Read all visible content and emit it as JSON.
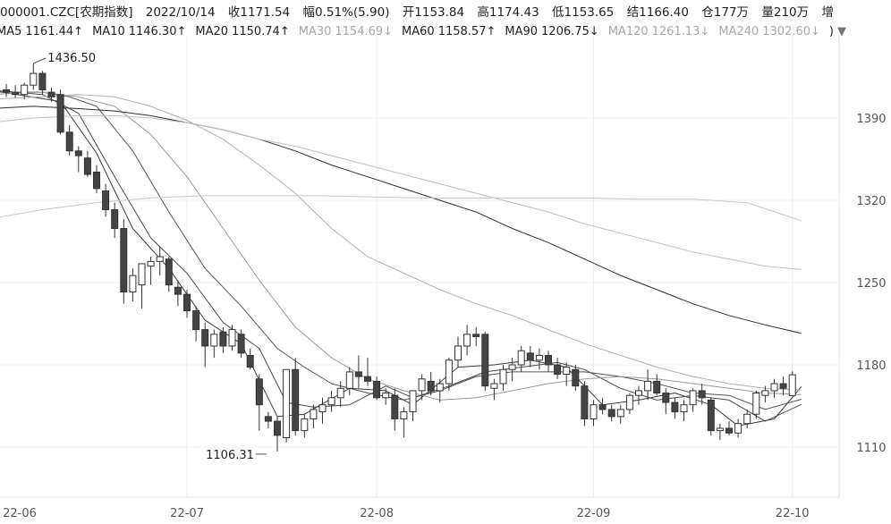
{
  "header": {
    "symbol": "000001.CZC[农期指数]",
    "date": "2022/10/14",
    "close_label": "收",
    "close": "1171.54",
    "change_label": "幅",
    "change": "0.51%(5.90)",
    "open_label": "开",
    "open": "1153.84",
    "high_label": "高",
    "high": "1174.43",
    "low_label": "低",
    "low": "1153.65",
    "settle_label": "结",
    "settle": "1166.40",
    "oi_label": "仓",
    "oi": "177万",
    "vol_label": "量",
    "vol": "210万",
    "more_label": "增"
  },
  "ma_legend": [
    {
      "label": "MA5",
      "value": "1161.44",
      "arrow": "↑",
      "muted": false
    },
    {
      "label": "MA10",
      "value": "1146.30",
      "arrow": "↑",
      "muted": false
    },
    {
      "label": "MA20",
      "value": "1150.74",
      "arrow": "↑",
      "muted": false
    },
    {
      "label": "MA30",
      "value": "1154.69",
      "arrow": "↓",
      "muted": true
    },
    {
      "label": "MA60",
      "value": "1158.57",
      "arrow": "↑",
      "muted": false
    },
    {
      "label": "MA90",
      "value": "1206.75",
      "arrow": "↓",
      "muted": false
    },
    {
      "label": "MA120",
      "value": "1261.13",
      "arrow": "↓",
      "muted": true
    },
    {
      "label": "MA240",
      "value": "1302.60",
      "arrow": "↓",
      "muted": true
    }
  ],
  "legend_tail": ")",
  "legend_toggle_icon": "triangle-down-icon",
  "chart_data": {
    "type": "candlestick",
    "ylim": [
      1075,
      1460
    ],
    "yticks": [
      1110,
      1180,
      1250,
      1320,
      1390
    ],
    "xticks": [
      {
        "label": "22-06",
        "index": -2
      },
      {
        "label": "22-07",
        "index": 20
      },
      {
        "label": "22-08",
        "index": 41
      },
      {
        "label": "22-09",
        "index": 65
      },
      {
        "label": "22-10",
        "index": 87
      }
    ],
    "annotations": [
      {
        "text": "1436.50",
        "index": 3,
        "value": 1436.5,
        "side": "right"
      },
      {
        "text": "1106.31",
        "index": 29,
        "value": 1106.31,
        "side": "left"
      }
    ],
    "candles": [
      [
        1414,
        1419,
        1408,
        1412
      ],
      [
        1412,
        1418,
        1407,
        1410
      ],
      [
        1410,
        1420,
        1406,
        1418
      ],
      [
        1418,
        1436.5,
        1414,
        1428
      ],
      [
        1428,
        1430,
        1410,
        1414
      ],
      [
        1412,
        1416,
        1404,
        1408
      ],
      [
        1410,
        1414,
        1376,
        1378
      ],
      [
        1378,
        1384,
        1358,
        1362
      ],
      [
        1362,
        1366,
        1344,
        1358
      ],
      [
        1356,
        1362,
        1340,
        1342
      ],
      [
        1344,
        1350,
        1326,
        1330
      ],
      [
        1328,
        1334,
        1306,
        1312
      ],
      [
        1312,
        1318,
        1288,
        1296
      ],
      [
        1296,
        1304,
        1232,
        1242
      ],
      [
        1242,
        1262,
        1234,
        1256
      ],
      [
        1248,
        1266,
        1228,
        1266
      ],
      [
        1264,
        1272,
        1248,
        1268
      ],
      [
        1268,
        1280,
        1256,
        1272
      ],
      [
        1270,
        1272,
        1242,
        1248
      ],
      [
        1246,
        1252,
        1230,
        1240
      ],
      [
        1240,
        1244,
        1220,
        1226
      ],
      [
        1226,
        1230,
        1200,
        1210
      ],
      [
        1210,
        1216,
        1178,
        1196
      ],
      [
        1196,
        1210,
        1186,
        1206
      ],
      [
        1208,
        1212,
        1190,
        1196
      ],
      [
        1196,
        1214,
        1192,
        1210
      ],
      [
        1206,
        1210,
        1186,
        1190
      ],
      [
        1188,
        1194,
        1176,
        1178
      ],
      [
        1168,
        1172,
        1124,
        1146
      ],
      [
        1136,
        1140,
        1126,
        1132
      ],
      [
        1132,
        1136,
        1106.31,
        1120
      ],
      [
        1118,
        1176,
        1114,
        1176
      ],
      [
        1176,
        1186,
        1120,
        1124
      ],
      [
        1124,
        1138,
        1118,
        1134
      ],
      [
        1134,
        1146,
        1126,
        1142
      ],
      [
        1140,
        1152,
        1130,
        1146
      ],
      [
        1146,
        1158,
        1140,
        1152
      ],
      [
        1152,
        1166,
        1144,
        1160
      ],
      [
        1160,
        1178,
        1154,
        1174
      ],
      [
        1174,
        1188,
        1160,
        1170
      ],
      [
        1170,
        1186,
        1162,
        1166
      ],
      [
        1166,
        1170,
        1150,
        1152
      ],
      [
        1152,
        1160,
        1146,
        1156
      ],
      [
        1154,
        1160,
        1124,
        1134
      ],
      [
        1134,
        1144,
        1118,
        1140
      ],
      [
        1140,
        1158,
        1132,
        1158
      ],
      [
        1158,
        1172,
        1150,
        1168
      ],
      [
        1166,
        1174,
        1154,
        1158
      ],
      [
        1158,
        1168,
        1148,
        1164
      ],
      [
        1164,
        1186,
        1158,
        1184
      ],
      [
        1184,
        1204,
        1178,
        1196
      ],
      [
        1196,
        1214,
        1188,
        1206
      ],
      [
        1206,
        1212,
        1196,
        1204
      ],
      [
        1206,
        1208,
        1158,
        1162
      ],
      [
        1160,
        1168,
        1150,
        1164
      ],
      [
        1164,
        1180,
        1158,
        1176
      ],
      [
        1176,
        1186,
        1166,
        1180
      ],
      [
        1180,
        1196,
        1174,
        1192
      ],
      [
        1190,
        1196,
        1178,
        1184
      ],
      [
        1184,
        1194,
        1176,
        1188
      ],
      [
        1188,
        1192,
        1174,
        1180
      ],
      [
        1180,
        1186,
        1168,
        1172
      ],
      [
        1172,
        1182,
        1162,
        1178
      ],
      [
        1176,
        1180,
        1158,
        1162
      ],
      [
        1162,
        1166,
        1128,
        1134
      ],
      [
        1134,
        1150,
        1128,
        1146
      ],
      [
        1146,
        1152,
        1138,
        1142
      ],
      [
        1142,
        1146,
        1132,
        1136
      ],
      [
        1136,
        1146,
        1130,
        1142
      ],
      [
        1142,
        1156,
        1138,
        1154
      ],
      [
        1154,
        1162,
        1146,
        1158
      ],
      [
        1158,
        1176,
        1150,
        1166
      ],
      [
        1166,
        1172,
        1154,
        1156
      ],
      [
        1156,
        1160,
        1138,
        1148
      ],
      [
        1148,
        1152,
        1134,
        1140
      ],
      [
        1140,
        1150,
        1132,
        1146
      ],
      [
        1146,
        1160,
        1140,
        1158
      ],
      [
        1158,
        1164,
        1146,
        1152
      ],
      [
        1150,
        1152,
        1120,
        1124
      ],
      [
        1124,
        1130,
        1116,
        1126
      ],
      [
        1126,
        1132,
        1120,
        1122
      ],
      [
        1122,
        1134,
        1118,
        1130
      ],
      [
        1130,
        1142,
        1126,
        1138
      ],
      [
        1138,
        1158,
        1134,
        1156
      ],
      [
        1154,
        1162,
        1148,
        1158
      ],
      [
        1158,
        1168,
        1152,
        1164
      ],
      [
        1164,
        1170,
        1154,
        1160
      ],
      [
        1153.84,
        1174.43,
        1153.65,
        1171.54
      ]
    ],
    "ma_lines": [
      {
        "name": "MA5",
        "color": "#3a3a3a",
        "values": []
      },
      {
        "name": "MA10",
        "color": "#4a4a4a",
        "values": []
      },
      {
        "name": "MA20",
        "color": "#555555",
        "values": []
      },
      {
        "name": "MA30",
        "color": "#9a9a9a",
        "values": []
      },
      {
        "name": "MA60",
        "color": "#b0b0b0",
        "values": []
      },
      {
        "name": "MA90",
        "color": "#2e2e2e",
        "values": []
      },
      {
        "name": "MA120",
        "color": "#c0c0c0",
        "values": []
      },
      {
        "name": "MA240",
        "color": "#c8c8c8",
        "values": []
      }
    ],
    "ma_shapes": {
      "MA5": [
        [
          -2,
          1414
        ],
        [
          6,
          1404
        ],
        [
          10,
          1360
        ],
        [
          14,
          1296
        ],
        [
          18,
          1262
        ],
        [
          22,
          1218
        ],
        [
          26,
          1198
        ],
        [
          30,
          1136
        ],
        [
          33,
          1138
        ],
        [
          38,
          1160
        ],
        [
          42,
          1158
        ],
        [
          45,
          1146
        ],
        [
          50,
          1178
        ],
        [
          54,
          1180
        ],
        [
          58,
          1184
        ],
        [
          62,
          1178
        ],
        [
          66,
          1146
        ],
        [
          70,
          1150
        ],
        [
          74,
          1156
        ],
        [
          78,
          1146
        ],
        [
          81,
          1128
        ],
        [
          85,
          1134
        ],
        [
          88,
          1161.44
        ]
      ],
      "MA10": [
        [
          -2,
          1414
        ],
        [
          4,
          1410
        ],
        [
          8,
          1394
        ],
        [
          12,
          1340
        ],
        [
          16,
          1288
        ],
        [
          20,
          1258
        ],
        [
          24,
          1216
        ],
        [
          28,
          1194
        ],
        [
          31,
          1148
        ],
        [
          34,
          1144
        ],
        [
          38,
          1146
        ],
        [
          42,
          1162
        ],
        [
          45,
          1152
        ],
        [
          49,
          1162
        ],
        [
          53,
          1174
        ],
        [
          57,
          1178
        ],
        [
          61,
          1182
        ],
        [
          64,
          1176
        ],
        [
          68,
          1160
        ],
        [
          72,
          1150
        ],
        [
          76,
          1154
        ],
        [
          80,
          1150
        ],
        [
          84,
          1132
        ],
        [
          88,
          1146.3
        ]
      ],
      "MA20": [
        [
          -2,
          1412
        ],
        [
          4,
          1412
        ],
        [
          7,
          1408
        ],
        [
          10,
          1400
        ],
        [
          14,
          1362
        ],
        [
          18,
          1310
        ],
        [
          22,
          1262
        ],
        [
          26,
          1230
        ],
        [
          30,
          1194
        ],
        [
          33,
          1178
        ],
        [
          36,
          1164
        ],
        [
          40,
          1156
        ],
        [
          44,
          1150
        ],
        [
          48,
          1158
        ],
        [
          52,
          1170
        ],
        [
          56,
          1174
        ],
        [
          60,
          1174
        ],
        [
          64,
          1174
        ],
        [
          68,
          1170
        ],
        [
          72,
          1164
        ],
        [
          76,
          1156
        ],
        [
          80,
          1154
        ],
        [
          84,
          1142
        ],
        [
          88,
          1150.74
        ]
      ],
      "MA30": [
        [
          -2,
          1410
        ],
        [
          4,
          1412
        ],
        [
          8,
          1408
        ],
        [
          12,
          1400
        ],
        [
          16,
          1376
        ],
        [
          20,
          1340
        ],
        [
          24,
          1296
        ],
        [
          28,
          1252
        ],
        [
          32,
          1212
        ],
        [
          36,
          1186
        ],
        [
          40,
          1168
        ],
        [
          44,
          1158
        ],
        [
          48,
          1150
        ],
        [
          52,
          1152
        ],
        [
          56,
          1158
        ],
        [
          60,
          1164
        ],
        [
          64,
          1168
        ],
        [
          68,
          1170
        ],
        [
          72,
          1168
        ],
        [
          76,
          1164
        ],
        [
          80,
          1160
        ],
        [
          84,
          1156
        ],
        [
          88,
          1154.69
        ]
      ],
      "MA60": [
        [
          -2,
          1406
        ],
        [
          4,
          1408
        ],
        [
          8,
          1410
        ],
        [
          12,
          1408
        ],
        [
          16,
          1400
        ],
        [
          20,
          1388
        ],
        [
          24,
          1372
        ],
        [
          28,
          1350
        ],
        [
          32,
          1326
        ],
        [
          36,
          1296
        ],
        [
          40,
          1272
        ],
        [
          44,
          1258
        ],
        [
          48,
          1244
        ],
        [
          52,
          1232
        ],
        [
          56,
          1222
        ],
        [
          60,
          1210
        ],
        [
          64,
          1198
        ],
        [
          68,
          1188
        ],
        [
          72,
          1178
        ],
        [
          76,
          1170
        ],
        [
          80,
          1164
        ],
        [
          84,
          1160
        ],
        [
          88,
          1158.57
        ]
      ],
      "MA90": [
        [
          -2,
          1398
        ],
        [
          3,
          1400
        ],
        [
          8,
          1398
        ],
        [
          12,
          1396
        ],
        [
          16,
          1392
        ],
        [
          20,
          1386
        ],
        [
          24,
          1380
        ],
        [
          28,
          1372
        ],
        [
          32,
          1362
        ],
        [
          36,
          1350
        ],
        [
          40,
          1340
        ],
        [
          44,
          1330
        ],
        [
          48,
          1320
        ],
        [
          52,
          1310
        ],
        [
          56,
          1296
        ],
        [
          60,
          1284
        ],
        [
          64,
          1270
        ],
        [
          68,
          1256
        ],
        [
          72,
          1244
        ],
        [
          76,
          1232
        ],
        [
          80,
          1222
        ],
        [
          84,
          1214
        ],
        [
          88,
          1206.75
        ]
      ],
      "MA120": [
        [
          -2,
          1386
        ],
        [
          3,
          1390
        ],
        [
          8,
          1392
        ],
        [
          12,
          1392
        ],
        [
          16,
          1390
        ],
        [
          20,
          1386
        ],
        [
          24,
          1380
        ],
        [
          28,
          1372
        ],
        [
          32,
          1366
        ],
        [
          36,
          1358
        ],
        [
          40,
          1350
        ],
        [
          44,
          1342
        ],
        [
          48,
          1334
        ],
        [
          52,
          1326
        ],
        [
          56,
          1318
        ],
        [
          60,
          1310
        ],
        [
          64,
          1300
        ],
        [
          68,
          1292
        ],
        [
          72,
          1284
        ],
        [
          76,
          1276
        ],
        [
          80,
          1270
        ],
        [
          84,
          1264
        ],
        [
          88,
          1261.13
        ]
      ],
      "MA240": [
        [
          -2,
          1304
        ],
        [
          4,
          1312
        ],
        [
          10,
          1318
        ],
        [
          16,
          1322
        ],
        [
          22,
          1324
        ],
        [
          28,
          1324
        ],
        [
          34,
          1324
        ],
        [
          40,
          1323
        ],
        [
          46,
          1322
        ],
        [
          52,
          1322
        ],
        [
          58,
          1322
        ],
        [
          64,
          1322
        ],
        [
          70,
          1321
        ],
        [
          76,
          1321
        ],
        [
          82,
          1318
        ],
        [
          88,
          1302.6
        ]
      ]
    }
  }
}
